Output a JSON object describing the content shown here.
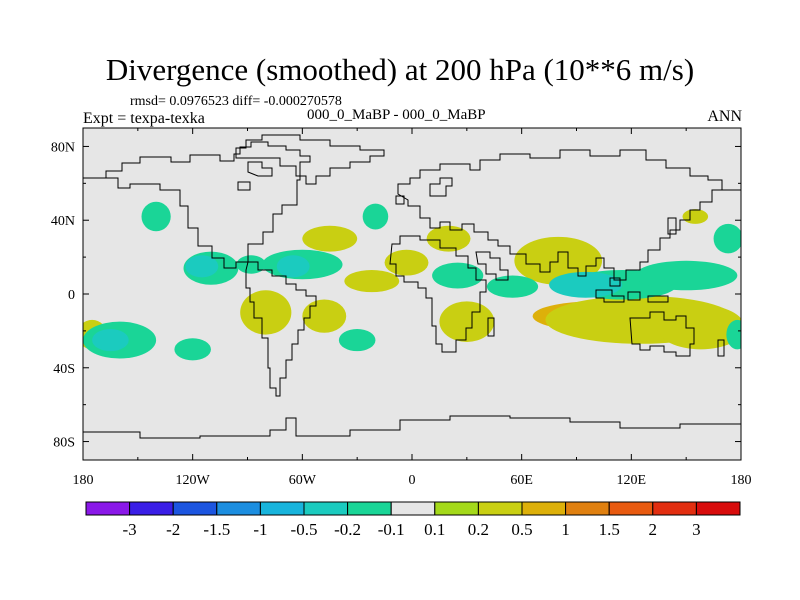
{
  "chart_data": {
    "type": "heatmap",
    "title": "Divergence (smoothed) at 200 hPa (10**6 m/s)",
    "stats_line": "rmsd= 0.0976523 diff= -0.000270578",
    "experiment_label": "Expt = texpa-texka",
    "case_label": "000_0_MaBP - 000_0_MaBP",
    "season": "ANN",
    "x_axis": {
      "range": [
        -180,
        180
      ],
      "ticks": [
        -180,
        -120,
        -60,
        0,
        60,
        120,
        180
      ],
      "tick_labels": [
        "180",
        "120W",
        "60W",
        "0",
        "60E",
        "120E",
        "180"
      ]
    },
    "y_axis": {
      "range": [
        -90,
        90
      ],
      "ticks": [
        80,
        40,
        0,
        -40,
        -80
      ],
      "tick_labels": [
        "80N",
        "40N",
        "0",
        "40S",
        "80S"
      ]
    },
    "colorbar": {
      "labels": [
        "-3",
        "-2",
        "-1.5",
        "-1",
        "-0.5",
        "-0.2",
        "-0.1",
        "0.1",
        "0.2",
        "0.5",
        "1",
        "1.5",
        "2",
        "3"
      ],
      "colors": [
        "#8a18e8",
        "#3a1ee6",
        "#1c55e0",
        "#1c8ee0",
        "#18b4dc",
        "#1bcbbf",
        "#1ad597",
        "#e6e6e6",
        "#a4d91a",
        "#c9cf12",
        "#ddb00a",
        "#e08010",
        "#e85a10",
        "#e22e10",
        "#d80c0c"
      ]
    },
    "field_regions": [
      {
        "lon": 30,
        "lat": -15,
        "rx": 15,
        "ry": 11,
        "level": "0.2"
      },
      {
        "lon": 100,
        "lat": -12,
        "rx": 34,
        "ry": 8,
        "level": "0.5"
      },
      {
        "lon": 125,
        "lat": -14,
        "rx": 52,
        "ry": 13,
        "level": "0.2"
      },
      {
        "lon": 160,
        "lat": -17,
        "rx": 16,
        "ry": 8,
        "level": "0.5"
      },
      {
        "lon": 158,
        "lat": -18,
        "rx": 24,
        "ry": 12,
        "level": "0.2"
      },
      {
        "lon": 82,
        "lat": 20,
        "rx": 14,
        "ry": 8,
        "level": "0.5"
      },
      {
        "lon": 80,
        "lat": 18,
        "rx": 24,
        "ry": 13,
        "level": "0.2"
      },
      {
        "lon": -82,
        "lat": -10,
        "rx": 6,
        "ry": 6,
        "level": "0.5"
      },
      {
        "lon": -80,
        "lat": -10,
        "rx": 14,
        "ry": 12,
        "level": "0.2"
      },
      {
        "lon": -48,
        "lat": -12,
        "rx": 12,
        "ry": 9,
        "level": "0.2"
      },
      {
        "lon": -45,
        "lat": 30,
        "rx": 15,
        "ry": 7,
        "level": "0.2"
      },
      {
        "lon": -22,
        "lat": 7,
        "rx": 15,
        "ry": 6,
        "level": "0.2"
      },
      {
        "lon": -3,
        "lat": 17,
        "rx": 12,
        "ry": 7,
        "level": "0.2"
      },
      {
        "lon": 20,
        "lat": 30,
        "rx": 12,
        "ry": 7,
        "level": "0.2"
      },
      {
        "lon": 155,
        "lat": 42,
        "rx": 7,
        "ry": 4,
        "level": "0.2"
      },
      {
        "lon": -175,
        "lat": -22,
        "rx": 8,
        "ry": 8,
        "level": "0.2"
      },
      {
        "lon": 115,
        "lat": 5,
        "rx": 30,
        "ry": 8,
        "level": "-0.1"
      },
      {
        "lon": 150,
        "lat": 10,
        "rx": 28,
        "ry": 8,
        "level": "-0.1"
      },
      {
        "lon": 95,
        "lat": 5,
        "rx": 20,
        "ry": 7,
        "level": "-0.2"
      },
      {
        "lon": 55,
        "lat": 4,
        "rx": 14,
        "ry": 6,
        "level": "-0.1"
      },
      {
        "lon": -110,
        "lat": 14,
        "rx": 15,
        "ry": 9,
        "level": "-0.1"
      },
      {
        "lon": -115,
        "lat": 15,
        "rx": 9,
        "ry": 6,
        "level": "-0.2"
      },
      {
        "lon": -60,
        "lat": 16,
        "rx": 22,
        "ry": 8,
        "level": "-0.1"
      },
      {
        "lon": -65,
        "lat": 15,
        "rx": 9,
        "ry": 6,
        "level": "-0.2"
      },
      {
        "lon": -88,
        "lat": 16,
        "rx": 8,
        "ry": 5,
        "level": "-0.1"
      },
      {
        "lon": -140,
        "lat": 42,
        "rx": 8,
        "ry": 8,
        "level": "-0.1"
      },
      {
        "lon": -20,
        "lat": 42,
        "rx": 7,
        "ry": 7,
        "level": "-0.1"
      },
      {
        "lon": 25,
        "lat": 10,
        "rx": 14,
        "ry": 7,
        "level": "-0.1"
      },
      {
        "lon": -160,
        "lat": -25,
        "rx": 20,
        "ry": 10,
        "level": "-0.1"
      },
      {
        "lon": -165,
        "lat": -25,
        "rx": 10,
        "ry": 6,
        "level": "-0.2"
      },
      {
        "lon": -120,
        "lat": -30,
        "rx": 10,
        "ry": 6,
        "level": "-0.1"
      },
      {
        "lon": -30,
        "lat": -25,
        "rx": 10,
        "ry": 6,
        "level": "-0.1"
      },
      {
        "lon": 173,
        "lat": 30,
        "rx": 8,
        "ry": 8,
        "level": "-0.1"
      },
      {
        "lon": 178,
        "lat": -22,
        "rx": 6,
        "ry": 8,
        "level": "-0.1"
      }
    ]
  }
}
